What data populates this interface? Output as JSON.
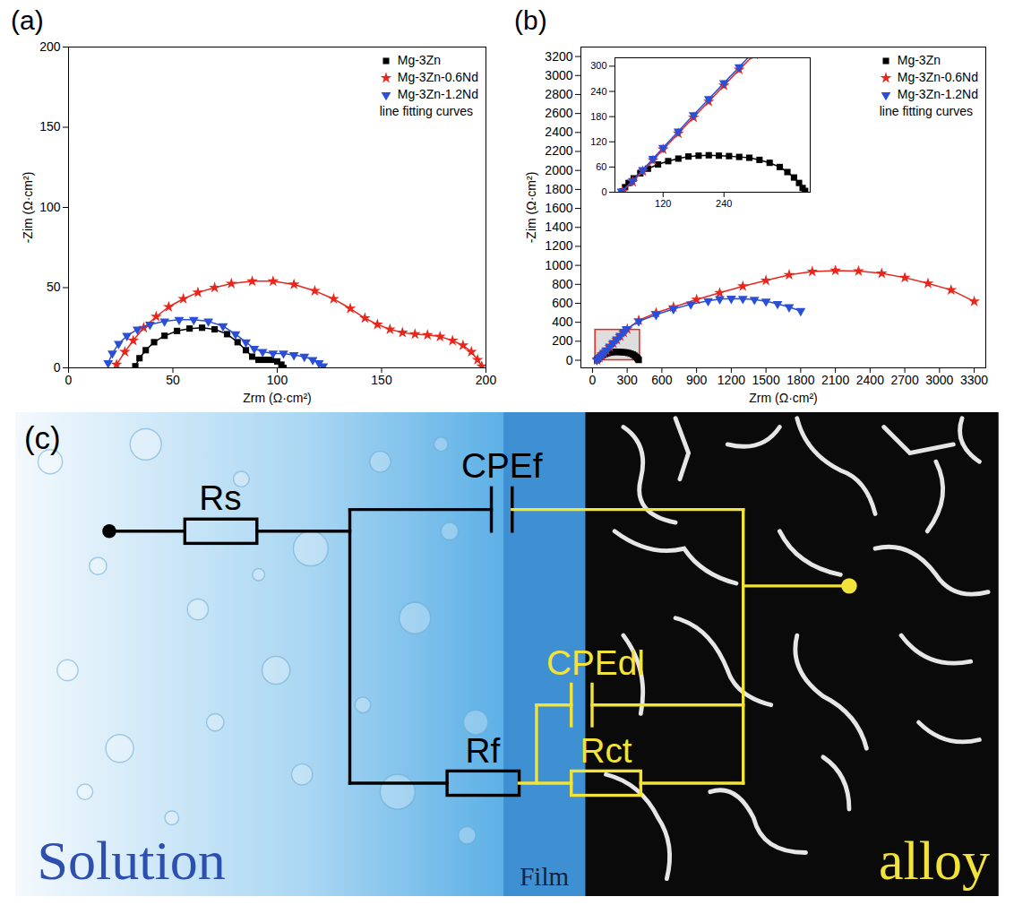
{
  "chart_data": [
    {
      "panel": "(a)",
      "type": "scatter",
      "x_label": "Zrm (Ω·cm²)",
      "y_label": "-Zim (Ω·cm²)",
      "xlim": [
        0,
        200
      ],
      "xticks": [
        0,
        50,
        100,
        150,
        200
      ],
      "ylim": [
        0,
        200
      ],
      "yticks": [
        0,
        50,
        100,
        150,
        200
      ],
      "grid": false,
      "legend": "top-right",
      "legend_note": "line fitting curves",
      "series": [
        {
          "name": "Mg-3Zn",
          "color": "#000000",
          "marker": "square",
          "line_style": "solid",
          "x": [
            32,
            34,
            37,
            41,
            46,
            52,
            58,
            64,
            70,
            76,
            81,
            85,
            88,
            91,
            94,
            97,
            100,
            102,
            103
          ],
          "values": [
            1,
            6,
            11,
            16,
            20,
            23,
            24.5,
            25,
            24,
            21,
            16,
            11,
            7,
            5,
            5,
            5,
            4,
            2,
            0
          ]
        },
        {
          "name": "Mg-3Zn-0.6Nd",
          "color": "#e8261c",
          "marker": "star",
          "line_style": "solid",
          "x": [
            23,
            27,
            31,
            36,
            42,
            48,
            55,
            62,
            70,
            78,
            88,
            98,
            108,
            118,
            127,
            135,
            142,
            148,
            154,
            160,
            166,
            172,
            178,
            184,
            189,
            193,
            196,
            198
          ],
          "values": [
            2,
            10,
            17,
            25,
            32,
            38,
            43,
            47,
            50,
            52.5,
            54,
            54,
            52,
            48,
            43,
            37,
            31,
            27,
            24,
            22,
            21,
            20.5,
            19.5,
            17,
            14,
            10,
            5,
            1
          ]
        },
        {
          "name": "Mg-3Zn-1.2Nd",
          "color": "#2a4fd6",
          "marker": "triangle-down",
          "line_style": "solid",
          "x": [
            19,
            21,
            24,
            28,
            33,
            39,
            46,
            53,
            60,
            67,
            74,
            80,
            85,
            89,
            93,
            98,
            103,
            108,
            113,
            117,
            120,
            122
          ],
          "values": [
            3,
            9,
            15,
            20,
            24,
            27,
            29,
            30,
            30,
            29,
            26,
            21,
            16,
            12,
            10,
            9,
            9,
            8,
            7,
            5,
            3,
            1
          ]
        }
      ]
    },
    {
      "panel": "(b)",
      "type": "scatter",
      "x_label": "Zrm (Ω·cm²)",
      "y_label": "-Zim (Ω·cm²)",
      "xlim": [
        -100,
        3400
      ],
      "xticks": [
        0,
        300,
        600,
        900,
        1200,
        1500,
        1800,
        2100,
        2400,
        2700,
        3000,
        3300
      ],
      "ylim": [
        -80,
        3300
      ],
      "yticks": [
        0,
        200,
        400,
        600,
        800,
        1000,
        1200,
        1400,
        1600,
        1800,
        2000,
        2200,
        2400,
        2600,
        2800,
        3000,
        3200
      ],
      "grid": false,
      "legend": "top-right",
      "legend_note": "line fitting curves",
      "inset": {
        "xlim": [
          25,
          410
        ],
        "xticks": [
          120,
          240
        ],
        "ylim": [
          0,
          320
        ],
        "yticks": [
          0,
          60,
          120,
          180,
          240,
          300
        ]
      },
      "series": [
        {
          "name": "Mg-3Zn",
          "color": "#000000",
          "marker": "square",
          "line_style": "solid",
          "x": [
            40,
            45,
            52,
            62,
            75,
            90,
            110,
            130,
            150,
            170,
            190,
            210,
            230,
            250,
            270,
            290,
            310,
            330,
            350,
            365,
            378,
            388,
            395,
            400
          ],
          "values": [
            2,
            12,
            22,
            33,
            45,
            56,
            66,
            74,
            80,
            85,
            87,
            88,
            87,
            86,
            84,
            82,
            77,
            70,
            60,
            48,
            35,
            22,
            10,
            3
          ]
        },
        {
          "name": "Mg-3Zn-0.6Nd",
          "color": "#e8261c",
          "marker": "star",
          "line_style": "solid",
          "x": [
            40,
            60,
            80,
            100,
            120,
            150,
            180,
            210,
            240,
            270,
            300,
            400,
            550,
            700,
            900,
            1100,
            1300,
            1500,
            1700,
            1900,
            2100,
            2300,
            2500,
            2700,
            2900,
            3100,
            3300
          ],
          "values": [
            2,
            25,
            50,
            76,
            102,
            140,
            178,
            216,
            254,
            292,
            328,
            420,
            500,
            560,
            640,
            710,
            780,
            840,
            900,
            935,
            945,
            940,
            915,
            870,
            810,
            740,
            620
          ]
        },
        {
          "name": "Mg-3Zn-1.2Nd",
          "color": "#2a4fd6",
          "marker": "triangle-down",
          "line_style": "solid",
          "x": [
            38,
            60,
            80,
            100,
            120,
            150,
            180,
            210,
            240,
            270,
            295,
            400,
            550,
            700,
            850,
            1000,
            1100,
            1200,
            1300,
            1400,
            1500,
            1600,
            1700,
            1800
          ],
          "values": [
            2,
            27,
            53,
            80,
            106,
            145,
            184,
            222,
            260,
            298,
            330,
            410,
            480,
            540,
            590,
            625,
            645,
            650,
            648,
            640,
            620,
            595,
            560,
            520
          ]
        }
      ]
    }
  ],
  "diagram": {
    "panel": "(c)",
    "regions": {
      "solution": "Solution",
      "film": "Film",
      "alloy": "alloy"
    },
    "elements": {
      "Rs": "Rs",
      "CPEf": "CPEf",
      "Rf": "Rf",
      "CPEdl": "CPEdl",
      "Rct": "Rct"
    }
  }
}
